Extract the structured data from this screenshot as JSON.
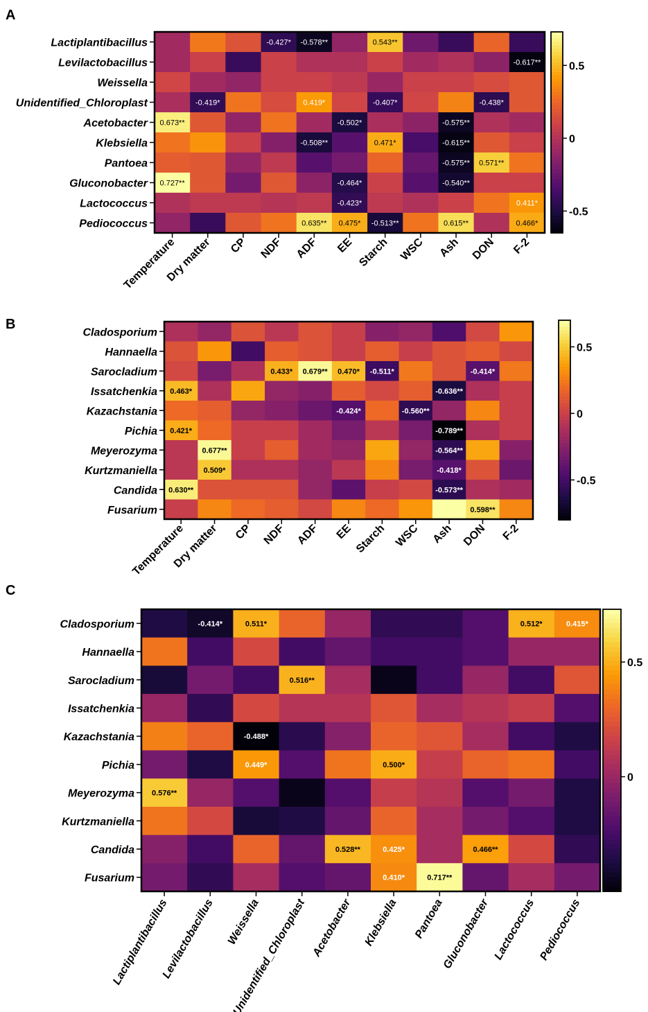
{
  "colormap": {
    "name": "inferno",
    "stops": [
      "#000004",
      "#1b0c41",
      "#4a0c6b",
      "#781c6d",
      "#a52c60",
      "#cf4446",
      "#ed6925",
      "#fb9b06",
      "#f7d13d",
      "#fcffa4"
    ]
  },
  "chart_data": [
    {
      "type": "heatmap",
      "panel": "A",
      "rows": [
        "Lactiplantibacillus",
        "Levilactobacillus",
        "Weissella",
        "Unidentified_Chloroplast",
        "Acetobacter",
        "Klebsiella",
        "Pantoea",
        "Gluconobacter",
        "Lactococcus",
        "Pediococcus"
      ],
      "columns": [
        "Temperature",
        "Dry matter",
        "CP",
        "NDF",
        "ADF",
        "EE",
        "Starch",
        "WSC",
        "Ash",
        "DON",
        "F-2"
      ],
      "values": [
        [
          -0.05,
          0.32,
          0.18,
          -0.427,
          -0.578,
          -0.1,
          0.543,
          -0.22,
          -0.4,
          0.25,
          -0.4
        ],
        [
          -0.05,
          0.1,
          -0.4,
          0.1,
          0.0,
          0.0,
          0.1,
          -0.05,
          0.0,
          -0.12,
          -0.617
        ],
        [
          0.12,
          -0.05,
          -0.1,
          0.1,
          0.1,
          0.05,
          -0.08,
          0.1,
          0.1,
          0.15,
          0.2
        ],
        [
          -0.02,
          -0.419,
          0.3,
          0.15,
          0.419,
          0.12,
          -0.407,
          0.12,
          0.35,
          -0.438,
          0.2
        ],
        [
          0.673,
          0.2,
          -0.1,
          0.3,
          -0.05,
          -0.502,
          -0.02,
          -0.12,
          -0.575,
          0.0,
          -0.05
        ],
        [
          0.3,
          0.4,
          0.1,
          -0.15,
          -0.508,
          -0.3,
          0.471,
          -0.35,
          -0.615,
          0.2,
          0.1
        ],
        [
          0.22,
          0.2,
          -0.1,
          0.05,
          -0.3,
          -0.2,
          0.25,
          -0.25,
          -0.575,
          0.571,
          0.3
        ],
        [
          0.727,
          0.2,
          -0.2,
          0.2,
          -0.12,
          -0.464,
          0.1,
          -0.3,
          -0.54,
          0.1,
          0.1
        ],
        [
          0.0,
          0.05,
          0.05,
          0.02,
          0.05,
          -0.423,
          0.05,
          0.0,
          0.1,
          0.3,
          0.411
        ],
        [
          -0.1,
          -0.4,
          0.2,
          0.3,
          0.635,
          0.475,
          -0.513,
          0.3,
          0.615,
          0.0,
          0.466
        ]
      ],
      "labels": [
        [
          "",
          "",
          "",
          "-0.427*",
          "-0.578**",
          "",
          "0.543**",
          "",
          "",
          "",
          ""
        ],
        [
          "",
          "",
          "",
          "",
          "",
          "",
          "",
          "",
          "",
          "",
          "-0.617**"
        ],
        [
          "",
          "",
          "",
          "",
          "",
          "",
          "",
          "",
          "",
          "",
          ""
        ],
        [
          "",
          "-0.419*",
          "",
          "",
          "0.419*",
          "",
          "-0.407*",
          "",
          "",
          "-0.438*",
          ""
        ],
        [
          "0.673**",
          "",
          "",
          "",
          "",
          "-0.502*",
          "",
          "",
          "-0.575**",
          "",
          ""
        ],
        [
          "",
          "",
          "",
          "",
          "-0.508**",
          "",
          "0.471*",
          "",
          "-0.615**",
          "",
          ""
        ],
        [
          "",
          "",
          "",
          "",
          "",
          "",
          "",
          "",
          "-0.575**",
          "0.571**",
          ""
        ],
        [
          "0.727**",
          "",
          "",
          "",
          "",
          "-0.464*",
          "",
          "",
          "-0.540**",
          "",
          ""
        ],
        [
          "",
          "",
          "",
          "",
          "",
          "-0.423*",
          "",
          "",
          "",
          "",
          "0.411*"
        ],
        [
          "",
          "",
          "",
          "",
          "0.635**",
          "0.475*",
          "-0.513**",
          "",
          "0.615**",
          "",
          "0.466*"
        ]
      ],
      "label_bold": false,
      "colorbar": {
        "ticks": [
          0.5,
          0,
          -0.5
        ],
        "tick_labels": [
          "0.5",
          "0",
          "-0.5"
        ],
        "range": [
          -0.65,
          0.73
        ]
      }
    },
    {
      "type": "heatmap",
      "panel": "B",
      "rows": [
        "Cladosporium",
        "Hannaella",
        "Sarocladium",
        "Issatchenkia",
        "Kazachstania",
        "Pichia",
        "Meyerozyma",
        "Kurtzmaniella",
        "Candida",
        "Fusarium"
      ],
      "columns": [
        "Temperature",
        "Dry matter",
        "CP",
        "NDF",
        "ADF",
        "EE",
        "Starch",
        "WSC",
        "Ash",
        "DON",
        "F-2"
      ],
      "values": [
        [
          -0.1,
          -0.2,
          0.1,
          -0.05,
          0.1,
          0.0,
          -0.25,
          -0.2,
          -0.45,
          0.05,
          0.35
        ],
        [
          0.1,
          0.35,
          -0.5,
          0.15,
          0.1,
          0.0,
          0.15,
          0.0,
          0.1,
          0.15,
          0.05
        ],
        [
          0.05,
          -0.3,
          -0.1,
          0.433,
          0.679,
          0.47,
          -0.511,
          0.25,
          0.1,
          -0.414,
          0.25
        ],
        [
          0.463,
          -0.1,
          0.4,
          -0.2,
          -0.25,
          0.15,
          0.05,
          0.15,
          -0.636,
          -0.1,
          0.0
        ],
        [
          0.2,
          0.15,
          -0.2,
          -0.25,
          -0.35,
          -0.424,
          0.2,
          -0.56,
          -0.2,
          0.3,
          0.0
        ],
        [
          0.421,
          0.2,
          0.0,
          0.0,
          -0.15,
          -0.3,
          -0.05,
          -0.3,
          -0.789,
          -0.1,
          0.0
        ],
        [
          -0.05,
          0.677,
          0.0,
          0.15,
          -0.15,
          -0.2,
          0.4,
          -0.2,
          -0.564,
          0.4,
          -0.25
        ],
        [
          -0.05,
          0.509,
          -0.1,
          -0.1,
          -0.2,
          -0.05,
          0.3,
          -0.3,
          -0.418,
          0.1,
          -0.35
        ],
        [
          0.63,
          0.1,
          0.1,
          0.1,
          -0.2,
          -0.4,
          0.0,
          0.05,
          -0.573,
          -0.1,
          -0.15
        ],
        [
          0.0,
          0.3,
          0.2,
          0.15,
          0.05,
          0.3,
          0.2,
          0.35,
          0.7,
          0.598,
          0.3
        ]
      ],
      "labels": [
        [
          "",
          "",
          "",
          "",
          "",
          "",
          "",
          "",
          "",
          "",
          ""
        ],
        [
          "",
          "",
          "",
          "",
          "",
          "",
          "",
          "",
          "",
          "",
          ""
        ],
        [
          "",
          "",
          "",
          "0.433*",
          "0.679**",
          "0.470*",
          "-0.511*",
          "",
          "",
          "-0.414*",
          ""
        ],
        [
          "0.463*",
          "",
          "",
          "",
          "",
          "",
          "",
          "",
          "-0.636**",
          "",
          ""
        ],
        [
          "",
          "",
          "",
          "",
          "",
          "-0.424*",
          "",
          "-0.560**",
          "",
          "",
          ""
        ],
        [
          "0.421*",
          "",
          "",
          "",
          "",
          "",
          "",
          "",
          "-0.789**",
          "",
          ""
        ],
        [
          "",
          "0.677**",
          "",
          "",
          "",
          "",
          "",
          "",
          "-0.564**",
          "",
          ""
        ],
        [
          "",
          "0.509*",
          "",
          "",
          "",
          "",
          "",
          "",
          "-0.418*",
          "",
          ""
        ],
        [
          "0.630**",
          "",
          "",
          "",
          "",
          "",
          "",
          "",
          "-0.573**",
          "",
          ""
        ],
        [
          "",
          "",
          "",
          "",
          "",
          "",
          "",
          "",
          "",
          "0.598**",
          ""
        ]
      ],
      "label_bold": true,
      "colorbar": {
        "ticks": [
          0.5,
          0,
          -0.5
        ],
        "tick_labels": [
          "0.5",
          "0",
          "-0.5"
        ],
        "range": [
          -0.8,
          0.7
        ]
      }
    },
    {
      "type": "heatmap",
      "panel": "C",
      "rows": [
        "Cladosporium",
        "Hannaella",
        "Sarocladium",
        "Issatchenkia",
        "Kazachstania",
        "Pichia",
        "Meyerozyma",
        "Kurtzmaniella",
        "Candida",
        "Fusarium"
      ],
      "columns": [
        "Lactiplantibacillus",
        "Levilactobacillus",
        "Weissella",
        "Unidentified_Chloroplast",
        "Acetobacter",
        "Klebsiella",
        "Pantoea",
        "Gluconobacter",
        "Lactococcus",
        "Pediococcus"
      ],
      "values": [
        [
          -0.35,
          -0.414,
          0.511,
          0.3,
          0.0,
          -0.3,
          -0.3,
          -0.2,
          0.512,
          0.415
        ],
        [
          0.35,
          -0.25,
          0.2,
          -0.25,
          -0.15,
          -0.25,
          -0.25,
          -0.2,
          0.0,
          0.0
        ],
        [
          -0.38,
          -0.1,
          -0.25,
          0.516,
          0.05,
          -0.45,
          -0.25,
          0.0,
          -0.25,
          0.25
        ],
        [
          0.0,
          -0.3,
          0.2,
          0.1,
          0.1,
          0.25,
          0.05,
          0.1,
          0.15,
          -0.2
        ],
        [
          0.38,
          0.3,
          -0.488,
          -0.32,
          -0.05,
          0.3,
          0.25,
          0.05,
          -0.25,
          -0.35
        ],
        [
          -0.1,
          -0.35,
          0.449,
          -0.2,
          0.35,
          0.5,
          0.15,
          0.3,
          0.35,
          -0.25
        ],
        [
          0.576,
          0.0,
          -0.2,
          -0.45,
          -0.2,
          0.15,
          0.1,
          -0.2,
          -0.1,
          -0.35
        ],
        [
          0.35,
          0.2,
          -0.38,
          -0.35,
          -0.15,
          0.3,
          0.05,
          -0.1,
          -0.2,
          -0.35
        ],
        [
          -0.05,
          -0.25,
          0.3,
          -0.15,
          0.528,
          0.425,
          0.05,
          0.466,
          0.2,
          -0.3
        ],
        [
          -0.1,
          -0.3,
          0.05,
          -0.2,
          -0.15,
          0.41,
          0.717,
          -0.15,
          0.05,
          -0.1
        ]
      ],
      "labels": [
        [
          "",
          "-0.414*",
          "0.511*",
          "",
          "",
          "",
          "",
          "",
          "0.512*",
          "0.415*"
        ],
        [
          "",
          "",
          "",
          "",
          "",
          "",
          "",
          "",
          "",
          ""
        ],
        [
          "",
          "",
          "",
          "0.516**",
          "",
          "",
          "",
          "",
          "",
          ""
        ],
        [
          "",
          "",
          "",
          "",
          "",
          "",
          "",
          "",
          "",
          ""
        ],
        [
          "",
          "",
          "-0.488*",
          "",
          "",
          "",
          "",
          "",
          "",
          ""
        ],
        [
          "",
          "",
          "0.449*",
          "",
          "",
          "0.500*",
          "",
          "",
          "",
          ""
        ],
        [
          "0.576**",
          "",
          "",
          "",
          "",
          "",
          "",
          "",
          "",
          ""
        ],
        [
          "",
          "",
          "",
          "",
          "",
          "",
          "",
          "",
          "",
          ""
        ],
        [
          "",
          "",
          "",
          "",
          "0.528**",
          "0.425*",
          "",
          "0.466**",
          "",
          ""
        ],
        [
          "",
          "",
          "",
          "",
          "",
          "0.410*",
          "0.717**",
          "",
          "",
          ""
        ]
      ],
      "label_bold": true,
      "colorbar": {
        "ticks": [
          0.5,
          0
        ],
        "tick_labels": [
          "0.5",
          "0"
        ],
        "range": [
          -0.5,
          0.73
        ]
      }
    }
  ]
}
